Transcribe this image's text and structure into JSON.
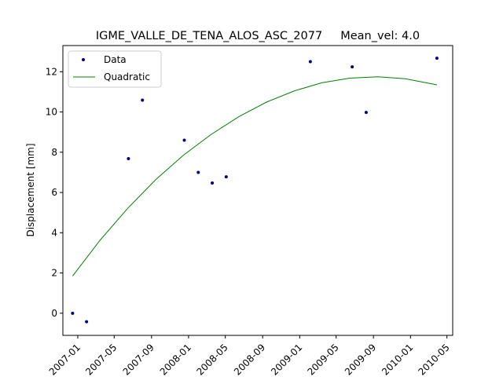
{
  "chart_data": {
    "type": "scatter",
    "title": "IGME_VALLE_DE_TENA_ALOS_ASC_2077     Mean_vel: 4.0",
    "xlabel": "",
    "ylabel": "Displacement [mm]",
    "xlim": [
      "2006-11-13",
      "2010-05-20"
    ],
    "ylim": [
      -1.1,
      13.3
    ],
    "grid": false,
    "legend": "top-left",
    "x_ticks": [
      "2007-01",
      "2007-05",
      "2007-09",
      "2008-01",
      "2008-05",
      "2008-09",
      "2009-01",
      "2009-05",
      "2009-09",
      "2010-01",
      "2010-05"
    ],
    "y_ticks": [
      0,
      2,
      4,
      6,
      8,
      10,
      12
    ],
    "series": [
      {
        "name": "Data",
        "kind": "points",
        "color": "#000080",
        "points": [
          {
            "x": "2006-12-15",
            "y": 0.0
          },
          {
            "x": "2007-01-30",
            "y": -0.42
          },
          {
            "x": "2007-06-17",
            "y": 7.68
          },
          {
            "x": "2007-08-02",
            "y": 10.59
          },
          {
            "x": "2007-12-18",
            "y": 8.6
          },
          {
            "x": "2008-02-02",
            "y": 7.0
          },
          {
            "x": "2008-03-19",
            "y": 6.47
          },
          {
            "x": "2008-05-04",
            "y": 6.78
          },
          {
            "x": "2009-02-05",
            "y": 12.5
          },
          {
            "x": "2009-06-23",
            "y": 12.24
          },
          {
            "x": "2009-08-08",
            "y": 9.98
          },
          {
            "x": "2010-03-29",
            "y": 12.67
          }
        ]
      },
      {
        "name": "Quadratic",
        "kind": "line",
        "color": "#008000",
        "points": [
          {
            "x": "2006-12-15",
            "y": 1.85
          },
          {
            "x": "2007-03-15",
            "y": 3.62
          },
          {
            "x": "2007-06-15",
            "y": 5.22
          },
          {
            "x": "2007-09-15",
            "y": 6.64
          },
          {
            "x": "2007-12-15",
            "y": 7.85
          },
          {
            "x": "2008-03-15",
            "y": 8.88
          },
          {
            "x": "2008-06-15",
            "y": 9.77
          },
          {
            "x": "2008-09-15",
            "y": 10.5
          },
          {
            "x": "2008-12-15",
            "y": 11.05
          },
          {
            "x": "2009-03-15",
            "y": 11.45
          },
          {
            "x": "2009-06-15",
            "y": 11.68
          },
          {
            "x": "2009-09-15",
            "y": 11.75
          },
          {
            "x": "2009-12-15",
            "y": 11.65
          },
          {
            "x": "2010-03-29",
            "y": 11.35
          }
        ]
      }
    ]
  }
}
